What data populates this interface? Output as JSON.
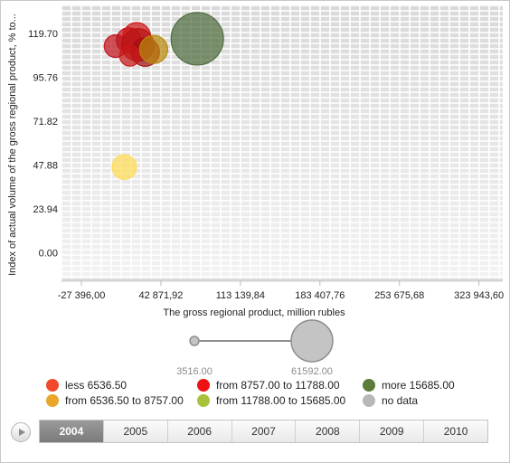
{
  "chart_data": {
    "type": "bubble",
    "xlabel": "The gross regional product, million rubles",
    "ylabel": "Index of actual volume of the gross regional product, % to...",
    "x_ticks": [
      "-27 396,00",
      "42 871,92",
      "113 139,84",
      "183 407,76",
      "253 675,68",
      "323 943,60"
    ],
    "y_ticks": [
      "119.70",
      "95.76",
      "71.82",
      "47.88",
      "23.94",
      "0.00"
    ],
    "xlim": [
      -45000,
      345000
    ],
    "ylim": [
      -15,
      135
    ],
    "grid": true,
    "points": [
      {
        "x": 2800,
        "y": 112.8,
        "size": 14000,
        "color": "#c0141c"
      },
      {
        "x": 14500,
        "y": 116.0,
        "size": 16500,
        "color": "#c0141c"
      },
      {
        "x": 21500,
        "y": 118.0,
        "size": 20000,
        "color": "#d01818"
      },
      {
        "x": 22500,
        "y": 113.5,
        "size": 26000,
        "color": "#b81414"
      },
      {
        "x": 29000,
        "y": 109.5,
        "size": 20500,
        "color": "#a01010"
      },
      {
        "x": 15500,
        "y": 107.5,
        "size": 12000,
        "color": "#c81818"
      },
      {
        "x": 36500,
        "y": 111.0,
        "size": 20000,
        "color": "#b8860b"
      },
      {
        "x": 75000,
        "y": 116.8,
        "size": 61592,
        "color": "#4c6b3c"
      },
      {
        "x": 10500,
        "y": 46.8,
        "size": 16000,
        "color": "#ffdd55"
      }
    ],
    "size_legend": {
      "min": "3516.00",
      "max": "61592.00",
      "min_value": 3516,
      "max_value": 61592
    },
    "legend": [
      {
        "label": "less 6536.50",
        "color": "#f04a2a"
      },
      {
        "label": "from 8757.00 to 11788.00",
        "color": "#ee1111"
      },
      {
        "label": "more 15685.00",
        "color": "#5c7c3a"
      },
      {
        "label": "from 6536.50 to 8757.00",
        "color": "#e8a62a"
      },
      {
        "label": "from 11788.00 to 15685.00",
        "color": "#a8c33a"
      },
      {
        "label": "no data",
        "color": "#b8b8b8"
      }
    ]
  },
  "timeline": {
    "years": [
      "2004",
      "2005",
      "2006",
      "2007",
      "2008",
      "2009",
      "2010"
    ],
    "active": "2004"
  }
}
